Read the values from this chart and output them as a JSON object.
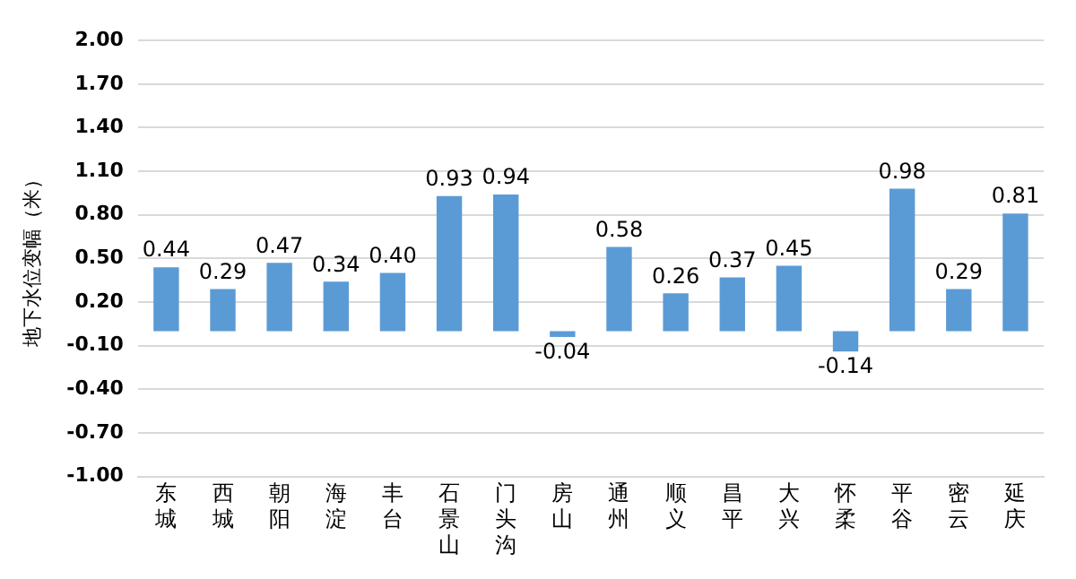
{
  "chart_data": {
    "type": "bar",
    "ylabel": "地下水位变幅（米）",
    "categories": [
      "东城",
      "西城",
      "朝阳",
      "海淀",
      "丰台",
      "石景山",
      "门头沟",
      "房山",
      "通州",
      "顺义",
      "昌平",
      "大兴",
      "怀柔",
      "平谷",
      "密云",
      "延庆"
    ],
    "values": [
      0.44,
      0.29,
      0.47,
      0.34,
      0.4,
      0.93,
      0.94,
      -0.04,
      0.58,
      0.26,
      0.37,
      0.45,
      -0.14,
      0.98,
      0.29,
      0.81
    ],
    "value_labels": [
      "0.44",
      "0.29",
      "0.47",
      "0.34",
      "0.40",
      "0.93",
      "0.94",
      "-0.04",
      "0.58",
      "0.26",
      "0.37",
      "0.45",
      "-0.14",
      "0.98",
      "0.29",
      "0.81"
    ],
    "color": "#5b9bd5",
    "grid": "y",
    "legend": false,
    "ylim": [
      -1,
      2
    ],
    "yticks": [
      {
        "value": -1,
        "label": "-1.00"
      },
      {
        "value": -0.7,
        "label": "-0.70"
      },
      {
        "value": -0.4,
        "label": "-0.40"
      },
      {
        "value": -0.1,
        "label": "-0.10"
      },
      {
        "value": 0.2,
        "label": "0.20"
      },
      {
        "value": 0.5,
        "label": "0.50"
      },
      {
        "value": 0.8,
        "label": "0.80"
      },
      {
        "value": 1.1,
        "label": "1.10"
      },
      {
        "value": 1.4,
        "label": "1.40"
      },
      {
        "value": 1.7,
        "label": "1.70"
      },
      {
        "value": 2,
        "label": "2.00"
      }
    ]
  }
}
